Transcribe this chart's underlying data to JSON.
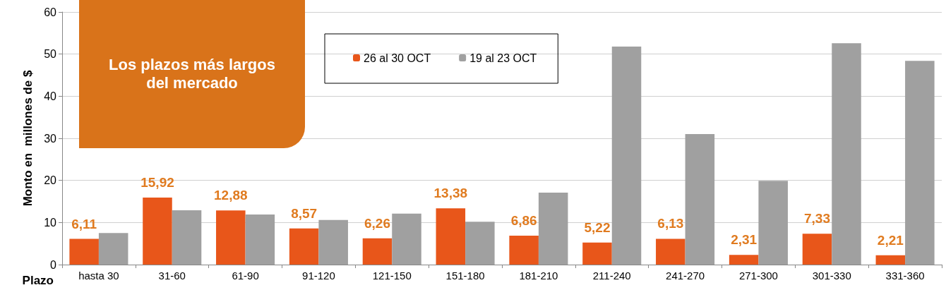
{
  "chart_data": {
    "type": "bar",
    "xlabel": "Plazo",
    "ylabel": "Monto en  millones de $",
    "annotations": [
      "Los plazos más largos del mercado"
    ],
    "categories": [
      "hasta 30",
      "31-60",
      "61-90",
      "91-120",
      "121-150",
      "151-180",
      "181-210",
      "211-240",
      "241-270",
      "271-300",
      "301-330",
      "331-360"
    ],
    "series": [
      {
        "name": "26 al 30 OCT",
        "color": "#e8561a",
        "values": [
          6.11,
          15.92,
          12.88,
          8.57,
          6.26,
          13.38,
          6.86,
          5.22,
          6.13,
          2.31,
          7.33,
          2.21
        ],
        "value_labels": [
          "6,11",
          "15,92",
          "12,88",
          "8,57",
          "6,26",
          "13,38",
          "6,86",
          "5,22",
          "6,13",
          "2,31",
          "7,33",
          "2,21"
        ]
      },
      {
        "name": "19 al 23 OCT",
        "color": "#a0a0a0",
        "values": [
          7.5,
          12.9,
          11.9,
          10.6,
          12.1,
          10.2,
          17.1,
          51.8,
          31.0,
          19.9,
          52.6,
          48.4
        ]
      }
    ],
    "ylim": [
      0,
      60
    ],
    "yticks": [
      0,
      10,
      20,
      30,
      40,
      50,
      60
    ],
    "grid": "y",
    "legend": "top"
  }
}
